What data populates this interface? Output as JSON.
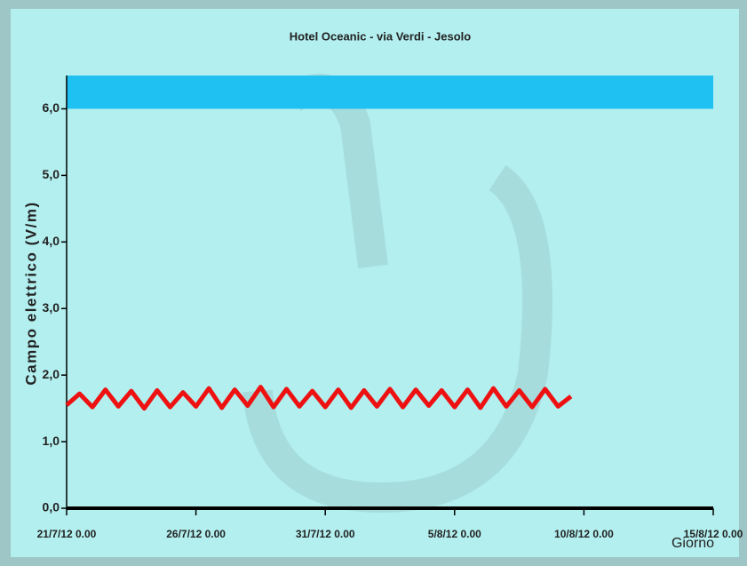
{
  "chart_data": {
    "type": "line",
    "title": "Hotel Oceanic - via Verdi - Jesolo",
    "y_label": "Campo elettrico (V/m)",
    "x_label": "Giorno",
    "x": [
      "21/7/12 0.00",
      "21/7/12 12.00",
      "22/7/12 0.00",
      "22/7/12 12.00",
      "23/7/12 0.00",
      "23/7/12 12.00",
      "24/7/12 0.00",
      "24/7/12 12.00",
      "25/7/12 0.00",
      "25/7/12 12.00",
      "26/7/12 0.00",
      "26/7/12 12.00",
      "27/7/12 0.00",
      "27/7/12 12.00",
      "28/7/12 0.00",
      "28/7/12 12.00",
      "29/7/12 0.00",
      "29/7/12 12.00",
      "30/7/12 0.00",
      "30/7/12 12.00",
      "31/7/12 0.00",
      "31/7/12 12.00",
      "1/8/12 0.00",
      "1/8/12 12.00",
      "2/8/12 0.00",
      "2/8/12 12.00",
      "3/8/12 0.00",
      "3/8/12 12.00",
      "4/8/12 0.00",
      "4/8/12 12.00",
      "5/8/12 0.00",
      "5/8/12 12.00",
      "6/8/12 0.00",
      "6/8/12 12.00",
      "7/8/12 0.00",
      "7/8/12 12.00",
      "8/8/12 0.00",
      "8/8/12 12.00",
      "9/8/12 0.00",
      "9/8/12 12.00"
    ],
    "series": [
      {
        "name": "Campo elettrico",
        "color": "#ee1111",
        "values": [
          1.55,
          1.72,
          1.52,
          1.78,
          1.53,
          1.76,
          1.5,
          1.77,
          1.52,
          1.74,
          1.53,
          1.8,
          1.51,
          1.78,
          1.54,
          1.82,
          1.52,
          1.79,
          1.53,
          1.76,
          1.52,
          1.78,
          1.51,
          1.77,
          1.53,
          1.79,
          1.52,
          1.78,
          1.54,
          1.77,
          1.52,
          1.78,
          1.51,
          1.8,
          1.53,
          1.77,
          1.52,
          1.79,
          1.53,
          1.68
        ]
      }
    ],
    "bands": [
      {
        "from": 6,
        "to": 6.5,
        "color": "#1fc0f2"
      }
    ],
    "xlim": [
      "21/7/12 0.00",
      "15/8/12 0.00"
    ],
    "xticks": [
      "21/7/12 0.00",
      "26/7/12 0.00",
      "31/7/12 0.00",
      "5/8/12 0.00",
      "10/8/12 0.00",
      "15/8/12 0.00"
    ],
    "ylim": [
      0,
      6.5
    ],
    "yticks": [
      {
        "value": 0,
        "label": "0,0"
      },
      {
        "value": 1,
        "label": "1,0"
      },
      {
        "value": 2,
        "label": "2,0"
      },
      {
        "value": 3,
        "label": "3,0"
      },
      {
        "value": 4,
        "label": "4,0"
      },
      {
        "value": 5,
        "label": "5,0"
      },
      {
        "value": 6,
        "label": "6,0"
      }
    ]
  }
}
